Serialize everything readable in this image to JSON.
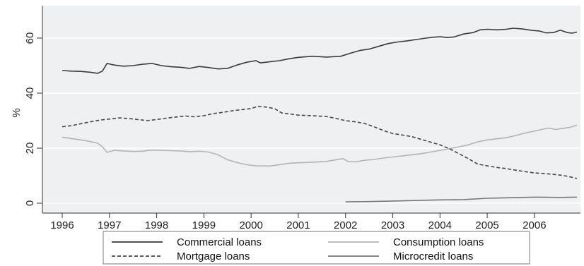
{
  "chart_data": {
    "type": "line",
    "title": "",
    "xlabel": "",
    "ylabel": "%",
    "xlim": [
      1996,
      2006.95
    ],
    "ylim": [
      0,
      64
    ],
    "grid": true,
    "legend_position": "bottom",
    "x_ticks": [
      1996,
      1997,
      1998,
      1999,
      2000,
      2001,
      2002,
      2003,
      2004,
      2005,
      2006
    ],
    "y_ticks": [
      0,
      20,
      40,
      60
    ],
    "series": [
      {
        "name": "Commercial loans",
        "color": "#3a3a3a",
        "dash": "solid",
        "points": [
          [
            1996.0,
            48.2
          ],
          [
            1996.2,
            48.0
          ],
          [
            1996.4,
            47.9
          ],
          [
            1996.6,
            47.6
          ],
          [
            1996.75,
            47.2
          ],
          [
            1996.85,
            48.0
          ],
          [
            1996.95,
            50.8
          ],
          [
            1997.1,
            50.2
          ],
          [
            1997.3,
            49.8
          ],
          [
            1997.5,
            50.0
          ],
          [
            1997.7,
            50.5
          ],
          [
            1997.9,
            50.8
          ],
          [
            1998.1,
            50.0
          ],
          [
            1998.3,
            49.6
          ],
          [
            1998.5,
            49.4
          ],
          [
            1998.7,
            49.0
          ],
          [
            1998.9,
            49.7
          ],
          [
            1999.1,
            49.3
          ],
          [
            1999.3,
            48.8
          ],
          [
            1999.5,
            49.0
          ],
          [
            1999.7,
            50.2
          ],
          [
            1999.9,
            51.2
          ],
          [
            2000.1,
            51.8
          ],
          [
            2000.2,
            51.0
          ],
          [
            2000.35,
            51.3
          ],
          [
            2000.6,
            51.8
          ],
          [
            2000.8,
            52.5
          ],
          [
            2001.0,
            53.0
          ],
          [
            2001.3,
            53.4
          ],
          [
            2001.6,
            53.1
          ],
          [
            2001.9,
            53.4
          ],
          [
            2002.1,
            54.5
          ],
          [
            2002.3,
            55.5
          ],
          [
            2002.5,
            56.0
          ],
          [
            2002.7,
            57.0
          ],
          [
            2002.9,
            58.0
          ],
          [
            2003.1,
            58.6
          ],
          [
            2003.3,
            59.0
          ],
          [
            2003.5,
            59.5
          ],
          [
            2003.7,
            60.0
          ],
          [
            2003.85,
            60.3
          ],
          [
            2004.0,
            60.5
          ],
          [
            2004.15,
            60.2
          ],
          [
            2004.3,
            60.4
          ],
          [
            2004.5,
            61.5
          ],
          [
            2004.7,
            62.0
          ],
          [
            2004.85,
            63.0
          ],
          [
            2005.0,
            63.2
          ],
          [
            2005.2,
            63.0
          ],
          [
            2005.4,
            63.2
          ],
          [
            2005.55,
            63.6
          ],
          [
            2005.75,
            63.3
          ],
          [
            2005.95,
            62.8
          ],
          [
            2006.1,
            62.6
          ],
          [
            2006.25,
            61.9
          ],
          [
            2006.4,
            62.0
          ],
          [
            2006.55,
            62.9
          ],
          [
            2006.7,
            62.0
          ],
          [
            2006.8,
            61.8
          ],
          [
            2006.9,
            62.2
          ]
        ]
      },
      {
        "name": "Consumption loans",
        "color": "#b4b4b4",
        "dash": "solid",
        "points": [
          [
            1996.0,
            24.0
          ],
          [
            1996.2,
            23.5
          ],
          [
            1996.4,
            23.0
          ],
          [
            1996.6,
            22.4
          ],
          [
            1996.75,
            21.8
          ],
          [
            1996.85,
            20.5
          ],
          [
            1996.95,
            18.5
          ],
          [
            1997.1,
            19.2
          ],
          [
            1997.3,
            19.0
          ],
          [
            1997.5,
            18.8
          ],
          [
            1997.7,
            18.9
          ],
          [
            1997.9,
            19.3
          ],
          [
            1998.1,
            19.2
          ],
          [
            1998.3,
            19.1
          ],
          [
            1998.5,
            19.0
          ],
          [
            1998.7,
            18.7
          ],
          [
            1998.9,
            18.9
          ],
          [
            1999.1,
            18.6
          ],
          [
            1999.3,
            17.6
          ],
          [
            1999.5,
            15.8
          ],
          [
            1999.7,
            14.8
          ],
          [
            1999.9,
            14.0
          ],
          [
            2000.1,
            13.6
          ],
          [
            2000.4,
            13.5
          ],
          [
            2000.6,
            14.0
          ],
          [
            2000.8,
            14.5
          ],
          [
            2001.0,
            14.7
          ],
          [
            2001.3,
            14.9
          ],
          [
            2001.6,
            15.2
          ],
          [
            2001.8,
            15.8
          ],
          [
            2001.95,
            16.2
          ],
          [
            2002.05,
            15.2
          ],
          [
            2002.2,
            15.0
          ],
          [
            2002.4,
            15.6
          ],
          [
            2002.6,
            15.9
          ],
          [
            2002.8,
            16.4
          ],
          [
            2003.0,
            16.8
          ],
          [
            2003.2,
            17.2
          ],
          [
            2003.4,
            17.6
          ],
          [
            2003.6,
            18.0
          ],
          [
            2003.8,
            18.6
          ],
          [
            2004.0,
            19.2
          ],
          [
            2004.2,
            19.8
          ],
          [
            2004.4,
            20.5
          ],
          [
            2004.6,
            21.2
          ],
          [
            2004.8,
            22.3
          ],
          [
            2005.0,
            23.0
          ],
          [
            2005.2,
            23.4
          ],
          [
            2005.4,
            23.8
          ],
          [
            2005.6,
            24.6
          ],
          [
            2005.8,
            25.5
          ],
          [
            2006.0,
            26.2
          ],
          [
            2006.15,
            26.8
          ],
          [
            2006.3,
            27.3
          ],
          [
            2006.45,
            26.8
          ],
          [
            2006.6,
            27.2
          ],
          [
            2006.75,
            27.6
          ],
          [
            2006.9,
            28.4
          ]
        ]
      },
      {
        "name": "Mortgage loans",
        "color": "#444444",
        "dash": "dashed",
        "points": [
          [
            1996.0,
            27.8
          ],
          [
            1996.2,
            28.2
          ],
          [
            1996.4,
            28.9
          ],
          [
            1996.6,
            29.6
          ],
          [
            1996.8,
            30.2
          ],
          [
            1997.0,
            30.6
          ],
          [
            1997.2,
            31.0
          ],
          [
            1997.4,
            30.8
          ],
          [
            1997.6,
            30.4
          ],
          [
            1997.8,
            30.0
          ],
          [
            1998.0,
            30.4
          ],
          [
            1998.2,
            30.9
          ],
          [
            1998.4,
            31.3
          ],
          [
            1998.6,
            31.7
          ],
          [
            1998.8,
            31.4
          ],
          [
            1999.0,
            31.8
          ],
          [
            1999.2,
            32.6
          ],
          [
            1999.4,
            33.0
          ],
          [
            1999.6,
            33.6
          ],
          [
            1999.8,
            34.0
          ],
          [
            2000.0,
            34.4
          ],
          [
            2000.15,
            35.2
          ],
          [
            2000.35,
            34.9
          ],
          [
            2000.5,
            34.3
          ],
          [
            2000.65,
            32.8
          ],
          [
            2000.8,
            32.5
          ],
          [
            2001.0,
            32.0
          ],
          [
            2001.3,
            31.8
          ],
          [
            2001.6,
            31.5
          ],
          [
            2001.8,
            30.8
          ],
          [
            2002.0,
            30.0
          ],
          [
            2002.2,
            29.6
          ],
          [
            2002.4,
            29.0
          ],
          [
            2002.6,
            27.8
          ],
          [
            2002.8,
            26.4
          ],
          [
            2003.0,
            25.3
          ],
          [
            2003.2,
            24.8
          ],
          [
            2003.4,
            24.2
          ],
          [
            2003.6,
            23.2
          ],
          [
            2003.8,
            22.2
          ],
          [
            2004.0,
            21.2
          ],
          [
            2004.2,
            19.8
          ],
          [
            2004.4,
            18.0
          ],
          [
            2004.6,
            16.2
          ],
          [
            2004.8,
            14.2
          ],
          [
            2005.0,
            13.6
          ],
          [
            2005.2,
            13.0
          ],
          [
            2005.4,
            12.6
          ],
          [
            2005.6,
            12.0
          ],
          [
            2005.8,
            11.5
          ],
          [
            2006.0,
            11.0
          ],
          [
            2006.2,
            10.8
          ],
          [
            2006.4,
            10.5
          ],
          [
            2006.6,
            10.1
          ],
          [
            2006.75,
            9.6
          ],
          [
            2006.9,
            9.0
          ]
        ]
      },
      {
        "name": "Microcredit loans",
        "color": "#777777",
        "dash": "solid",
        "points": [
          [
            2002.0,
            0.5
          ],
          [
            2002.5,
            0.6
          ],
          [
            2003.0,
            0.8
          ],
          [
            2003.5,
            1.0
          ],
          [
            2004.0,
            1.2
          ],
          [
            2004.5,
            1.3
          ],
          [
            2005.0,
            1.8
          ],
          [
            2005.5,
            2.0
          ],
          [
            2006.0,
            2.2
          ],
          [
            2006.5,
            2.1
          ],
          [
            2006.9,
            2.2
          ]
        ]
      }
    ]
  }
}
